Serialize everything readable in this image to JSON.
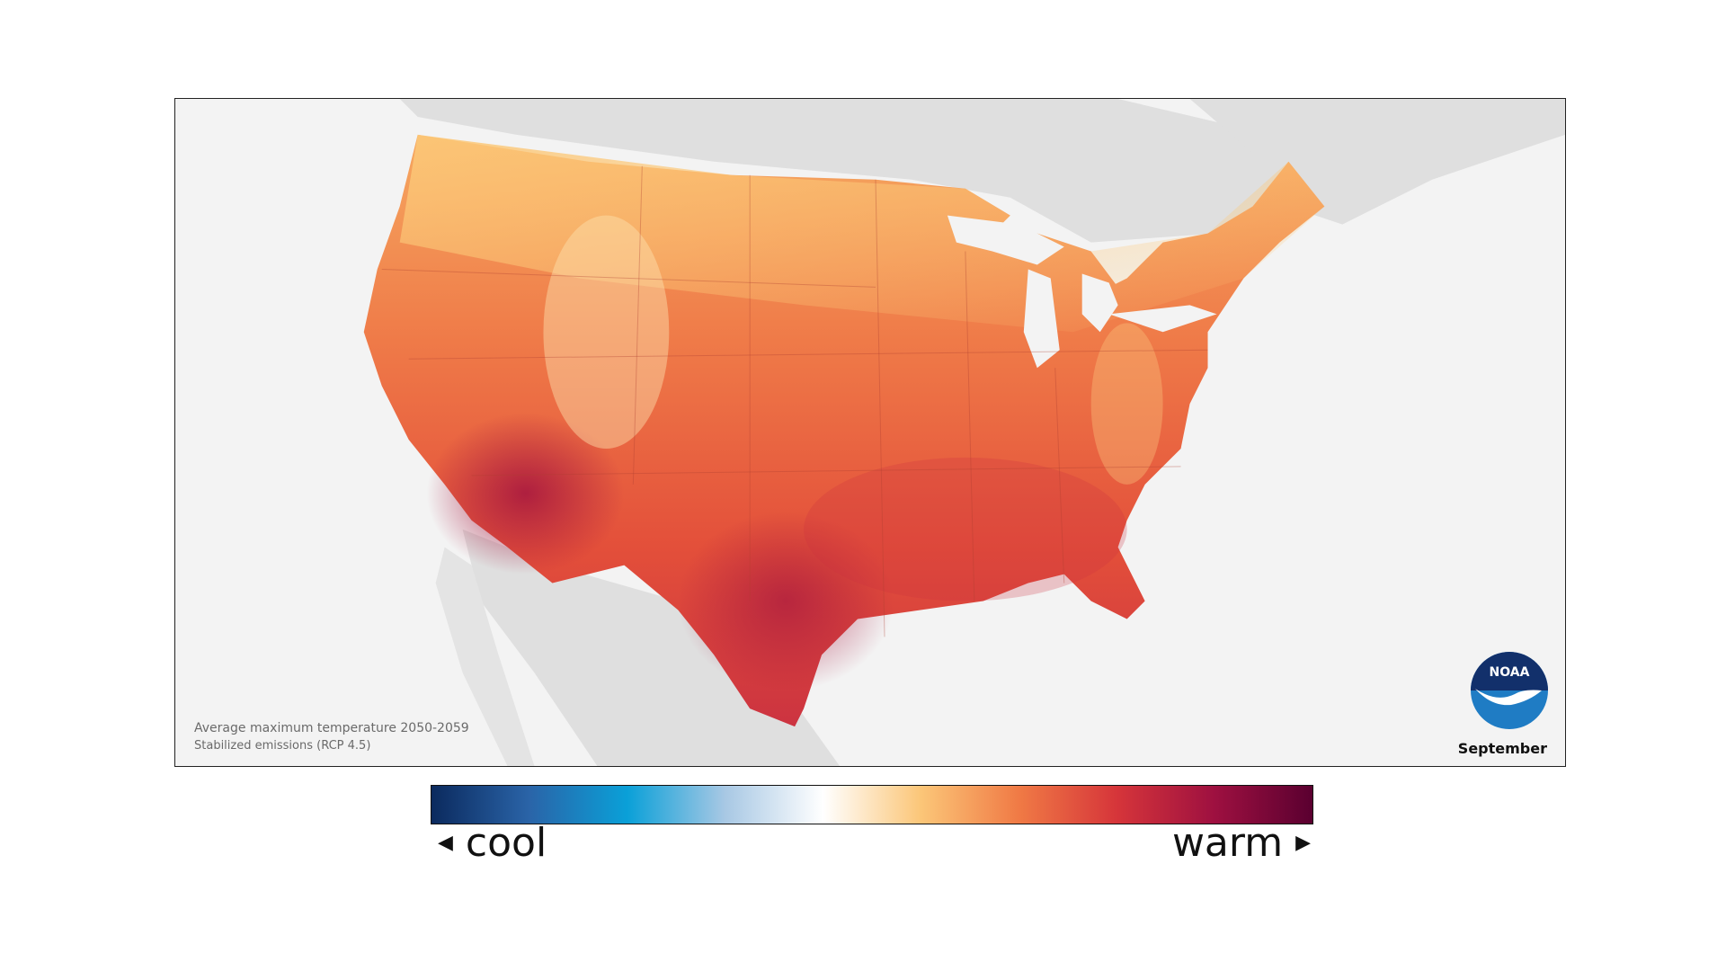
{
  "caption": {
    "line1": "Average maximum temperature 2050-2059",
    "line2": "Stabilized emissions (RCP 4.5)"
  },
  "month": "September",
  "logo_text": "NOAA",
  "legend": {
    "cool_label": "cool",
    "warm_label": "warm",
    "left_arrow": "◀",
    "right_arrow": "▶",
    "gradient_colors": [
      "#0b2a5e",
      "#2a64a8",
      "#0aa0d8",
      "#a8c8e4",
      "#ffffff",
      "#fbc678",
      "#f07a45",
      "#d6353a",
      "#9e1040",
      "#5a0030"
    ]
  },
  "colors": {
    "land_outside": "#dfdfdf",
    "ocean": "#f3f3f3",
    "warm_core": "#e8543a",
    "hot": "#a01845",
    "mild": "#f7a45c"
  }
}
